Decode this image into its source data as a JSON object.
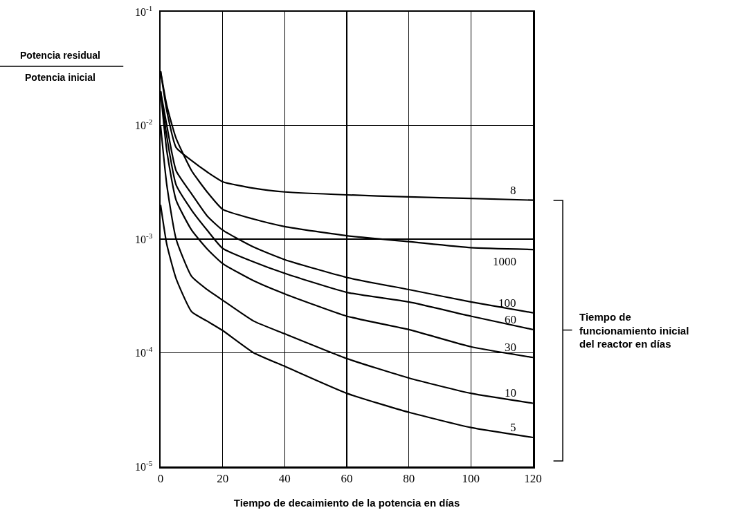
{
  "chart_data": {
    "type": "line",
    "xlabel": "Tiempo de decaimiento de la potencia en días",
    "ylabel": "Potencia residual\nPotencia inicial",
    "x": [
      0,
      2,
      5,
      10,
      15,
      20,
      30,
      40,
      60,
      80,
      100,
      120
    ],
    "series": [
      {
        "name": "8",
        "color": "#000000",
        "values": [
          0.03,
          0.0135,
          0.0064,
          0.0049,
          0.0039,
          0.0032,
          0.0028,
          0.0026,
          0.00245,
          0.00235,
          0.00228,
          0.0022
        ]
      },
      {
        "name": "1000",
        "color": "#000000",
        "values": [
          0.03,
          0.015,
          0.0077,
          0.004,
          0.0026,
          0.00183,
          0.0015,
          0.00129,
          0.00107,
          0.00095,
          0.00084,
          0.00081
        ]
      },
      {
        "name": "100",
        "color": "#000000",
        "values": [
          0.02,
          0.01,
          0.004,
          0.0025,
          0.0016,
          0.0012,
          0.00085,
          0.00066,
          0.00046,
          0.00036,
          0.00028,
          0.000225
        ]
      },
      {
        "name": "60",
        "color": "#000000",
        "values": [
          0.02,
          0.008,
          0.003,
          0.0018,
          0.0012,
          0.00083,
          0.00063,
          0.0005,
          0.00034,
          0.00028,
          0.00021,
          0.00016
        ]
      },
      {
        "name": "30",
        "color": "#000000",
        "values": [
          0.02,
          0.006,
          0.0022,
          0.0012,
          0.00082,
          0.00061,
          0.00043,
          0.00033,
          0.00021,
          0.00016,
          0.000113,
          9.1e-05
        ]
      },
      {
        "name": "10",
        "color": "#000000",
        "values": [
          0.01,
          0.003,
          0.001,
          0.00047,
          0.00036,
          0.00029,
          0.00019,
          0.000147,
          8.9e-05,
          6e-05,
          4.4e-05,
          3.6e-05
        ]
      },
      {
        "name": "5",
        "color": "#000000",
        "values": [
          0.002,
          0.0009,
          0.00045,
          0.00023,
          0.00019,
          0.000157,
          0.0001,
          7.6e-05,
          4.4e-05,
          3e-05,
          2.2e-05,
          1.8e-05
        ]
      }
    ],
    "xlim": [
      0,
      120
    ],
    "xticks": [
      0,
      20,
      40,
      60,
      80,
      100,
      120
    ],
    "ylim": [
      1e-05,
      0.1
    ],
    "yticks": [
      {
        "value": 0.1,
        "label": "10$^{-1}$"
      },
      {
        "value": 0.01,
        "label": "10$^{-2}$"
      },
      {
        "value": 0.001,
        "label": "10$^{-3}$"
      },
      {
        "value": 0.0001,
        "label": "10$^{-4}$"
      },
      {
        "value": 1e-05,
        "label": "10$^{-5}$"
      }
    ],
    "log": "y",
    "grid": true,
    "legend": false,
    "marker": "none",
    "line_style": "solid",
    "annotations": [
      "Tiempo de funcionamiento inicial del reactor en días"
    ]
  }
}
